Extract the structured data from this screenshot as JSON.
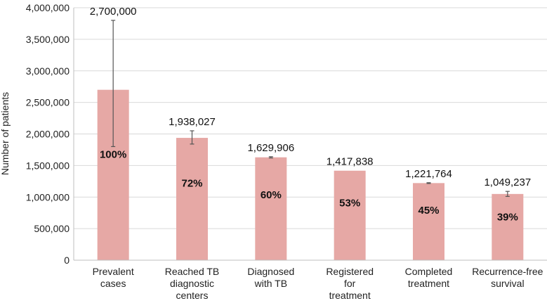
{
  "chart_data": {
    "type": "bar",
    "title": "",
    "xlabel": "",
    "ylabel": "Number of patients",
    "ylim": [
      0,
      4000000
    ],
    "yticks": [
      0,
      500000,
      1000000,
      1500000,
      2000000,
      2500000,
      3000000,
      3500000,
      4000000
    ],
    "ytick_labels": [
      "0",
      "500,000",
      "1,000,000",
      "1,500,000",
      "2,000,000",
      "2,500,000",
      "3,000,000",
      "3,500,000",
      "4,000,000"
    ],
    "grid": true,
    "bar_color": "#e6a8a5",
    "categories": [
      [
        "Prevalent",
        "cases"
      ],
      [
        "Reached TB",
        "diagnostic",
        "centers"
      ],
      [
        "Diagnosed",
        "with TB"
      ],
      [
        "Registered",
        "for",
        "treatment"
      ],
      [
        "Completed",
        "treatment"
      ],
      [
        "Recurrence-free",
        "survival"
      ]
    ],
    "values": [
      2700000,
      1938027,
      1629906,
      1417838,
      1221764,
      1049237
    ],
    "value_labels": [
      "2,700,000",
      "1,938,027",
      "1,629,906",
      "1,417,838",
      "1,221,764",
      "1,049,237"
    ],
    "percent_labels": [
      "100%",
      "72%",
      "60%",
      "53%",
      "45%",
      "39%"
    ],
    "error_bars": [
      [
        1800000,
        3800000
      ],
      [
        1840000,
        2050000
      ],
      [
        1620000,
        1640000
      ],
      null,
      [
        1215000,
        1228000
      ],
      [
        1010000,
        1090000
      ]
    ]
  }
}
